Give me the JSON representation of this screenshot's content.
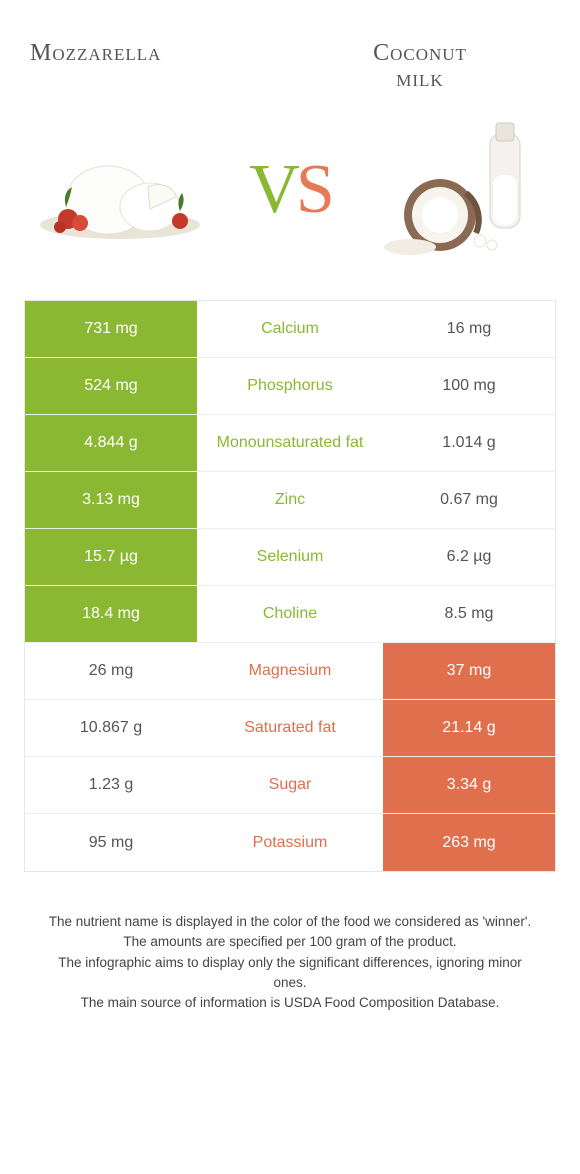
{
  "colors": {
    "left_winner": "#8ab833",
    "right_winner": "#e0704d",
    "left_loser": "#ffffff",
    "right_loser": "#ffffff",
    "text_left_on_white": "#555555",
    "text_right_on_white": "#555555",
    "mid_left_win": "#8ab833",
    "mid_right_win": "#e0704d"
  },
  "header": {
    "left_title": "Mozzarella",
    "right_title_line1": "Coconut",
    "right_title_line2": "milk",
    "vs_v": "V",
    "vs_s": "S"
  },
  "rows": [
    {
      "nutrient": "Calcium",
      "left": "731 mg",
      "right": "16 mg",
      "winner": "left"
    },
    {
      "nutrient": "Phosphorus",
      "left": "524 mg",
      "right": "100 mg",
      "winner": "left"
    },
    {
      "nutrient": "Monounsaturated fat",
      "left": "4.844 g",
      "right": "1.014 g",
      "winner": "left"
    },
    {
      "nutrient": "Zinc",
      "left": "3.13 mg",
      "right": "0.67 mg",
      "winner": "left"
    },
    {
      "nutrient": "Selenium",
      "left": "15.7 µg",
      "right": "6.2 µg",
      "winner": "left"
    },
    {
      "nutrient": "Choline",
      "left": "18.4 mg",
      "right": "8.5 mg",
      "winner": "left"
    },
    {
      "nutrient": "Magnesium",
      "left": "26 mg",
      "right": "37 mg",
      "winner": "right"
    },
    {
      "nutrient": "Saturated fat",
      "left": "10.867 g",
      "right": "21.14 g",
      "winner": "right"
    },
    {
      "nutrient": "Sugar",
      "left": "1.23 g",
      "right": "3.34 g",
      "winner": "right"
    },
    {
      "nutrient": "Potassium",
      "left": "95 mg",
      "right": "263 mg",
      "winner": "right"
    }
  ],
  "footer": {
    "line1": "The nutrient name is displayed in the color of the food we considered as 'winner'.",
    "line2": "The amounts are specified per 100 gram of the product.",
    "line3": "The infographic aims to display only the significant differences, ignoring minor ones.",
    "line4": "The main source of information is USDA Food Composition Database."
  }
}
